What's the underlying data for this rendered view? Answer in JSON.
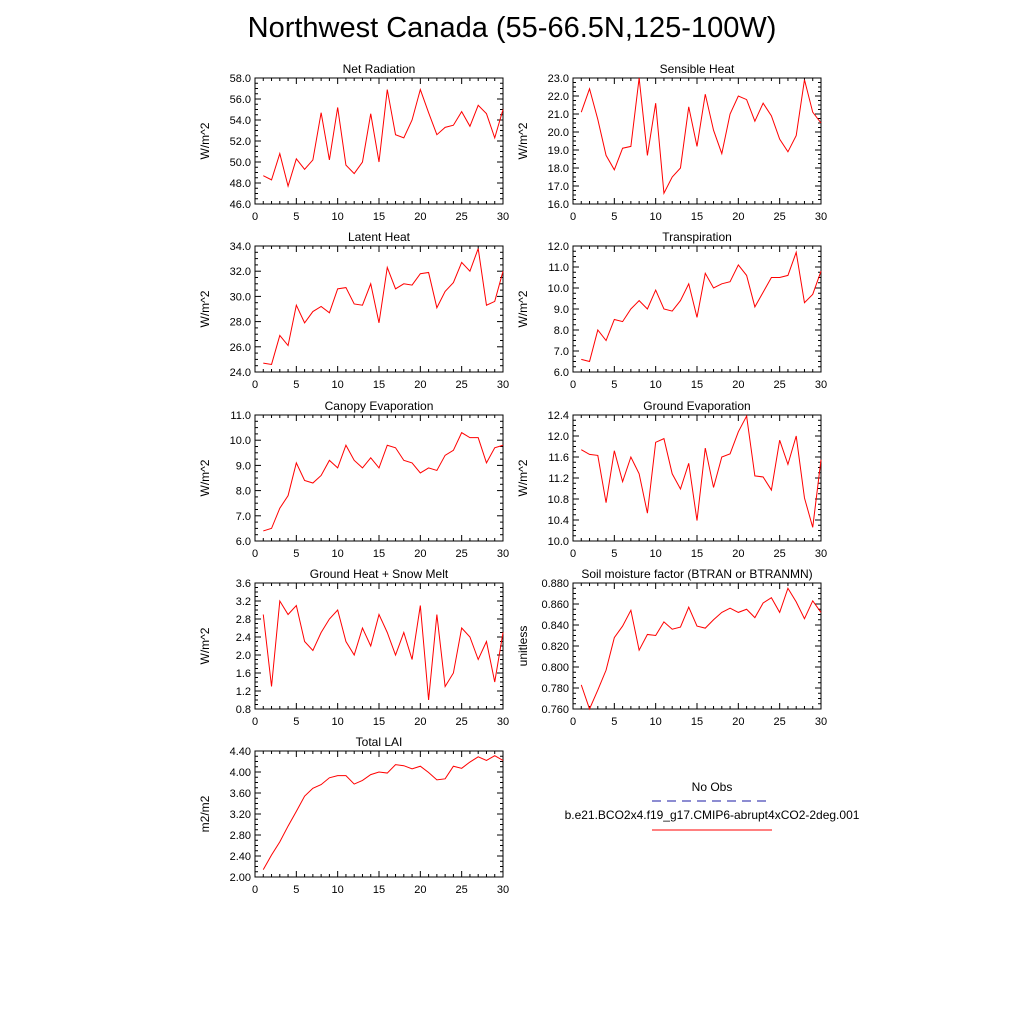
{
  "title": "Northwest Canada (55-66.5N,125-100W)",
  "colors": {
    "model": "#ff0000",
    "obs": "#1a1aa6",
    "axis": "#000000"
  },
  "legend": {
    "obs_label": "No Obs",
    "model_label": "b.e21.BCO2x4.f19_g17.CMIP6-abrupt4xCO2-2deg.001"
  },
  "chart_data": [
    {
      "type": "line",
      "title": "Net Radiation",
      "ylabel": "W/m^2",
      "xlim": [
        0,
        30
      ],
      "xticks": [
        0,
        5,
        10,
        15,
        20,
        25,
        30
      ],
      "ylim": [
        46.0,
        58.0
      ],
      "yticks": [
        46.0,
        48.0,
        50.0,
        52.0,
        54.0,
        56.0,
        58.0
      ],
      "ydec": 1,
      "x": [
        1,
        2,
        3,
        4,
        5,
        6,
        7,
        8,
        9,
        10,
        11,
        12,
        13,
        14,
        15,
        16,
        17,
        18,
        19,
        20,
        21,
        22,
        23,
        24,
        25,
        26,
        27,
        28,
        29,
        30
      ],
      "series": [
        {
          "name": "model",
          "values": [
            48.7,
            48.3,
            50.8,
            47.7,
            50.3,
            49.3,
            50.2,
            54.7,
            50.2,
            55.2,
            49.7,
            48.9,
            50.0,
            54.6,
            50.0,
            56.9,
            52.6,
            52.3,
            54.0,
            56.9,
            54.7,
            52.6,
            53.3,
            53.5,
            54.8,
            53.4,
            55.4,
            54.6,
            52.3,
            55.0
          ]
        }
      ]
    },
    {
      "type": "line",
      "title": "Sensible Heat",
      "ylabel": "W/m^2",
      "xlim": [
        0,
        30
      ],
      "xticks": [
        0,
        5,
        10,
        15,
        20,
        25,
        30
      ],
      "ylim": [
        16.0,
        23.0
      ],
      "yticks": [
        16.0,
        17.0,
        18.0,
        19.0,
        20.0,
        21.0,
        22.0,
        23.0
      ],
      "ydec": 1,
      "x": [
        1,
        2,
        3,
        4,
        5,
        6,
        7,
        8,
        9,
        10,
        11,
        12,
        13,
        14,
        15,
        16,
        17,
        18,
        19,
        20,
        21,
        22,
        23,
        24,
        25,
        26,
        27,
        28,
        29,
        30
      ],
      "series": [
        {
          "name": "model",
          "values": [
            21.1,
            22.4,
            20.7,
            18.7,
            17.9,
            19.1,
            19.2,
            23.0,
            18.7,
            21.6,
            16.6,
            17.5,
            18.0,
            21.4,
            19.2,
            22.1,
            20.1,
            18.8,
            21.0,
            22.0,
            21.8,
            20.6,
            21.6,
            20.9,
            19.6,
            18.9,
            19.8,
            22.9,
            21.1,
            20.5
          ]
        }
      ]
    },
    {
      "type": "line",
      "title": "Latent Heat",
      "ylabel": "W/m^2",
      "xlim": [
        0,
        30
      ],
      "xticks": [
        0,
        5,
        10,
        15,
        20,
        25,
        30
      ],
      "ylim": [
        24.0,
        34.0
      ],
      "yticks": [
        24.0,
        26.0,
        28.0,
        30.0,
        32.0,
        34.0
      ],
      "ydec": 1,
      "x": [
        1,
        2,
        3,
        4,
        5,
        6,
        7,
        8,
        9,
        10,
        11,
        12,
        13,
        14,
        15,
        16,
        17,
        18,
        19,
        20,
        21,
        22,
        23,
        24,
        25,
        26,
        27,
        28,
        29,
        30
      ],
      "series": [
        {
          "name": "model",
          "values": [
            24.7,
            24.6,
            26.9,
            26.1,
            29.3,
            27.9,
            28.8,
            29.2,
            28.7,
            30.6,
            30.7,
            29.4,
            29.3,
            31.0,
            27.9,
            32.3,
            30.6,
            31.0,
            30.9,
            31.8,
            31.9,
            29.1,
            30.4,
            31.1,
            32.7,
            32.0,
            33.8,
            29.3,
            29.6,
            32.0
          ]
        }
      ]
    },
    {
      "type": "line",
      "title": "Transpiration",
      "ylabel": "W/m^2",
      "xlim": [
        0,
        30
      ],
      "xticks": [
        0,
        5,
        10,
        15,
        20,
        25,
        30
      ],
      "ylim": [
        6.0,
        12.0
      ],
      "yticks": [
        6.0,
        7.0,
        8.0,
        9.0,
        10.0,
        11.0,
        12.0
      ],
      "ydec": 1,
      "x": [
        1,
        2,
        3,
        4,
        5,
        6,
        7,
        8,
        9,
        10,
        11,
        12,
        13,
        14,
        15,
        16,
        17,
        18,
        19,
        20,
        21,
        22,
        23,
        24,
        25,
        26,
        27,
        28,
        29,
        30
      ],
      "series": [
        {
          "name": "model",
          "values": [
            6.6,
            6.5,
            8.0,
            7.5,
            8.5,
            8.4,
            9.0,
            9.4,
            9.0,
            9.9,
            9.0,
            8.9,
            9.4,
            10.2,
            8.6,
            10.7,
            10.0,
            10.2,
            10.3,
            11.1,
            10.6,
            9.1,
            9.8,
            10.5,
            10.5,
            10.6,
            11.7,
            9.3,
            9.7,
            10.8
          ]
        }
      ]
    },
    {
      "type": "line",
      "title": "Canopy Evaporation",
      "ylabel": "W/m^2",
      "xlim": [
        0,
        30
      ],
      "xticks": [
        0,
        5,
        10,
        15,
        20,
        25,
        30
      ],
      "ylim": [
        6.0,
        11.0
      ],
      "yticks": [
        6.0,
        7.0,
        8.0,
        9.0,
        10.0,
        11.0
      ],
      "ydec": 1,
      "x": [
        1,
        2,
        3,
        4,
        5,
        6,
        7,
        8,
        9,
        10,
        11,
        12,
        13,
        14,
        15,
        16,
        17,
        18,
        19,
        20,
        21,
        22,
        23,
        24,
        25,
        26,
        27,
        28,
        29,
        30
      ],
      "series": [
        {
          "name": "model",
          "values": [
            6.4,
            6.5,
            7.3,
            7.8,
            9.1,
            8.4,
            8.3,
            8.6,
            9.2,
            8.9,
            9.8,
            9.2,
            8.9,
            9.3,
            8.9,
            9.8,
            9.7,
            9.2,
            9.1,
            8.7,
            8.9,
            8.8,
            9.4,
            9.6,
            10.3,
            10.1,
            10.1,
            9.1,
            9.7,
            9.8
          ]
        }
      ]
    },
    {
      "type": "line",
      "title": "Ground Evaporation",
      "ylabel": "W/m^2",
      "xlim": [
        0,
        30
      ],
      "xticks": [
        0,
        5,
        10,
        15,
        20,
        25,
        30
      ],
      "ylim": [
        10.0,
        12.4
      ],
      "yticks": [
        10.0,
        10.4,
        10.8,
        11.2,
        11.6,
        12.0,
        12.4
      ],
      "ydec": 1,
      "x": [
        1,
        2,
        3,
        4,
        5,
        6,
        7,
        8,
        9,
        10,
        11,
        12,
        13,
        14,
        15,
        16,
        17,
        18,
        19,
        20,
        21,
        22,
        23,
        24,
        25,
        26,
        27,
        28,
        29,
        30
      ],
      "series": [
        {
          "name": "model",
          "values": [
            11.74,
            11.65,
            11.63,
            10.73,
            11.72,
            11.13,
            11.6,
            11.28,
            10.53,
            11.88,
            11.95,
            11.28,
            10.99,
            11.48,
            10.39,
            11.77,
            11.02,
            11.6,
            11.66,
            12.08,
            12.38,
            11.24,
            11.22,
            10.97,
            11.92,
            11.46,
            12.0,
            10.82,
            10.26,
            11.55
          ]
        }
      ]
    },
    {
      "type": "line",
      "title": "Ground Heat + Snow Melt",
      "ylabel": "W/m^2",
      "xlim": [
        0,
        30
      ],
      "xticks": [
        0,
        5,
        10,
        15,
        20,
        25,
        30
      ],
      "ylim": [
        0.8,
        3.6
      ],
      "yticks": [
        0.8,
        1.2,
        1.6,
        2.0,
        2.4,
        2.8,
        3.2,
        3.6
      ],
      "ydec": 1,
      "x": [
        1,
        2,
        3,
        4,
        5,
        6,
        7,
        8,
        9,
        10,
        11,
        12,
        13,
        14,
        15,
        16,
        17,
        18,
        19,
        20,
        21,
        22,
        23,
        24,
        25,
        26,
        27,
        28,
        29,
        30
      ],
      "series": [
        {
          "name": "model",
          "values": [
            2.9,
            1.3,
            3.2,
            2.9,
            3.1,
            2.3,
            2.1,
            2.5,
            2.8,
            3.0,
            2.3,
            2.0,
            2.6,
            2.2,
            2.9,
            2.5,
            2.0,
            2.5,
            1.9,
            3.1,
            1.0,
            2.9,
            1.3,
            1.6,
            2.6,
            2.4,
            1.9,
            2.3,
            1.4,
            2.5
          ]
        }
      ]
    },
    {
      "type": "line",
      "title": "Soil moisture factor (BTRAN or BTRANMN)",
      "ylabel": "unitless",
      "xlim": [
        0,
        30
      ],
      "xticks": [
        0,
        5,
        10,
        15,
        20,
        25,
        30
      ],
      "ylim": [
        0.76,
        0.88
      ],
      "yticks": [
        0.76,
        0.78,
        0.8,
        0.82,
        0.84,
        0.86,
        0.88
      ],
      "ydec": 3,
      "x": [
        1,
        2,
        3,
        4,
        5,
        6,
        7,
        8,
        9,
        10,
        11,
        12,
        13,
        14,
        15,
        16,
        17,
        18,
        19,
        20,
        21,
        22,
        23,
        24,
        25,
        26,
        27,
        28,
        29,
        30
      ],
      "series": [
        {
          "name": "model",
          "values": [
            0.783,
            0.76,
            0.778,
            0.797,
            0.828,
            0.839,
            0.854,
            0.816,
            0.831,
            0.83,
            0.843,
            0.836,
            0.838,
            0.857,
            0.839,
            0.837,
            0.845,
            0.852,
            0.856,
            0.852,
            0.855,
            0.847,
            0.861,
            0.866,
            0.852,
            0.875,
            0.862,
            0.846,
            0.863,
            0.852
          ]
        }
      ]
    },
    {
      "type": "line",
      "title": "Total LAI",
      "ylabel": "m2/m2",
      "xlim": [
        0,
        30
      ],
      "xticks": [
        0,
        5,
        10,
        15,
        20,
        25,
        30
      ],
      "ylim": [
        2.0,
        4.4
      ],
      "yticks": [
        2.0,
        2.4,
        2.8,
        3.2,
        3.6,
        4.0,
        4.4
      ],
      "ydec": 2,
      "x": [
        1,
        2,
        3,
        4,
        5,
        6,
        7,
        8,
        9,
        10,
        11,
        12,
        13,
        14,
        15,
        16,
        17,
        18,
        19,
        20,
        21,
        22,
        23,
        24,
        25,
        26,
        27,
        28,
        29,
        30
      ],
      "series": [
        {
          "name": "model",
          "values": [
            2.14,
            2.42,
            2.67,
            2.97,
            3.25,
            3.54,
            3.69,
            3.76,
            3.89,
            3.93,
            3.93,
            3.77,
            3.84,
            3.95,
            4.0,
            3.98,
            4.14,
            4.12,
            4.06,
            4.11,
            3.99,
            3.85,
            3.87,
            4.11,
            4.07,
            4.19,
            4.29,
            4.22,
            4.31,
            4.22
          ]
        }
      ]
    }
  ]
}
